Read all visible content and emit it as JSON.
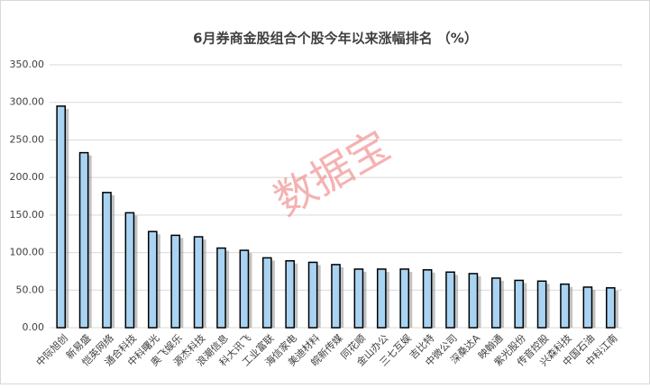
{
  "chart_data": {
    "type": "bar",
    "title": "6月券商金股组合个股今年以来涨幅排名 （%）",
    "watermark": "数据宝",
    "categories": [
      "中际旭创",
      "新易盛",
      "恺英网络",
      "通合科技",
      "中科曙光",
      "奥飞娱乐",
      "源杰科技",
      "浪潮信息",
      "科大讯飞",
      "工业富联",
      "海信家电",
      "美迪材料",
      "皖新传媒",
      "同花顺",
      "金山办公",
      "三七互娱",
      "吉比特",
      "中微公司",
      "深桑达A",
      "映翰通",
      "紫光股份",
      "传音控股",
      "兴森科技",
      "中国石油",
      "中科江南"
    ],
    "values": [
      295,
      233,
      180,
      153,
      128,
      123,
      121,
      106,
      103,
      93,
      89,
      87,
      84,
      78,
      78,
      78,
      77,
      74,
      72,
      66,
      63,
      62,
      58,
      54,
      53
    ],
    "color": "#a9d3f2",
    "ylim": [
      0,
      350
    ],
    "yticks": [
      {
        "value": 0,
        "label": "0.00"
      },
      {
        "value": 50,
        "label": "50.00"
      },
      {
        "value": 100,
        "label": "100.00"
      },
      {
        "value": 150,
        "label": "150.00"
      },
      {
        "value": 200,
        "label": "200.00"
      },
      {
        "value": 250,
        "label": "250.00"
      },
      {
        "value": 300,
        "label": "300.00"
      },
      {
        "value": 350,
        "label": "350.00"
      }
    ],
    "grid": true
  }
}
